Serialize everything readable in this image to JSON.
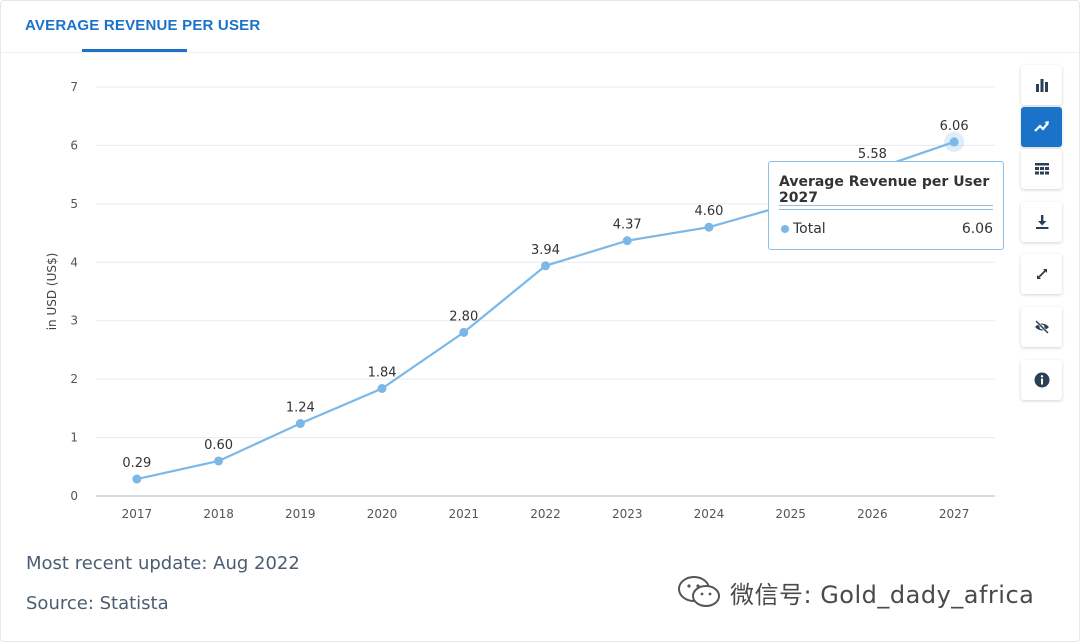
{
  "header": {
    "tab_title": "AVERAGE REVENUE PER USER"
  },
  "chart_data": {
    "type": "line",
    "ylabel": "in USD (US$)",
    "xlabel": "",
    "ylim": [
      0,
      7
    ],
    "yticks": [
      0,
      1,
      2,
      3,
      4,
      5,
      6,
      7
    ],
    "categories": [
      "2017",
      "2018",
      "2019",
      "2020",
      "2021",
      "2022",
      "2023",
      "2024",
      "2025",
      "2026",
      "2027"
    ],
    "series": [
      {
        "name": "Total",
        "values": [
          0.29,
          0.6,
          1.24,
          1.84,
          2.8,
          3.94,
          4.37,
          4.6,
          5.0,
          5.58,
          6.06
        ],
        "labels": [
          "0.29",
          "0.60",
          "1.24",
          "1.84",
          "2.80",
          "3.94",
          "4.37",
          "4.60",
          "",
          "5.58",
          "6.06"
        ],
        "color": "#7bb8e8"
      }
    ],
    "grid": true,
    "highlighted_index": 10
  },
  "tooltip": {
    "title": "Average Revenue per User 2027",
    "series_name": "Total",
    "value": "6.06"
  },
  "toolbar": {
    "buttons": [
      {
        "name": "bar-chart-button",
        "icon": "bar-chart-icon",
        "active": false
      },
      {
        "name": "line-chart-button",
        "icon": "line-chart-icon",
        "active": true
      },
      {
        "name": "table-view-button",
        "icon": "table-icon",
        "active": false
      },
      {
        "name": "download-button",
        "icon": "download-icon",
        "active": false
      },
      {
        "name": "fullscreen-button",
        "icon": "expand-icon",
        "active": false
      },
      {
        "name": "hide-button",
        "icon": "eye-off-icon",
        "active": false
      },
      {
        "name": "info-button",
        "icon": "info-icon",
        "active": false
      }
    ]
  },
  "footer": {
    "update": "Most recent update: Aug 2022",
    "source": "Source: Statista"
  },
  "watermark": {
    "text": "微信号: Gold_dady_africa"
  },
  "colors": {
    "accent": "#1a73c9",
    "line": "#7bb8e8",
    "grid": "#e6eaef",
    "footer_text": "#4a5d72"
  }
}
